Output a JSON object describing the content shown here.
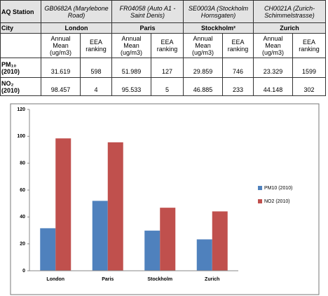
{
  "table": {
    "station_header": "AQ Station",
    "stations": [
      "GB0682A (Marylebone Road)",
      "FR04058 (Auto A1 - Saint Denis)",
      "SE0003A (Stockholm Hornsgaten)",
      "CH0021A (Zurich-Schimmelstrasse)"
    ],
    "city_header": "City",
    "cities": [
      "London",
      "Paris",
      "Stockholm²",
      "Zurich"
    ],
    "subheaders": [
      "Annual Mean (ug/m3)",
      "EEA ranking",
      "Annual Mean (ug/m3)",
      "EEA ranking",
      "Annual Mean (ug/m3)",
      "EEA ranking",
      "Annual Mean (ug/m3)",
      "EEA ranking"
    ],
    "rows": [
      {
        "pollutant": "PM₁₀",
        "year": "(2010)",
        "cells": [
          "31.619",
          "598",
          "51.989",
          "127",
          "29.859",
          "746",
          "23.329",
          "1599"
        ]
      },
      {
        "pollutant": "NO₂",
        "year": "(2010)",
        "cells": [
          "98.457",
          "4",
          "95.533",
          "5",
          "46.885",
          "233",
          "44.148",
          "302"
        ]
      }
    ]
  },
  "chart_data": {
    "type": "bar",
    "categories": [
      "London",
      "Paris",
      "Stockholm",
      "Zurich"
    ],
    "series": [
      {
        "name": "PM10 (2010)",
        "color": "#4f81bd",
        "values": [
          31.619,
          51.989,
          29.859,
          23.329
        ]
      },
      {
        "name": "NO2 (2010)",
        "color": "#c0504d",
        "values": [
          98.457,
          95.533,
          46.885,
          44.148
        ]
      }
    ],
    "ylim": [
      0,
      120
    ],
    "yticks": [
      0,
      20,
      40,
      60,
      80,
      100,
      120
    ],
    "grid": false,
    "legend": "right"
  }
}
